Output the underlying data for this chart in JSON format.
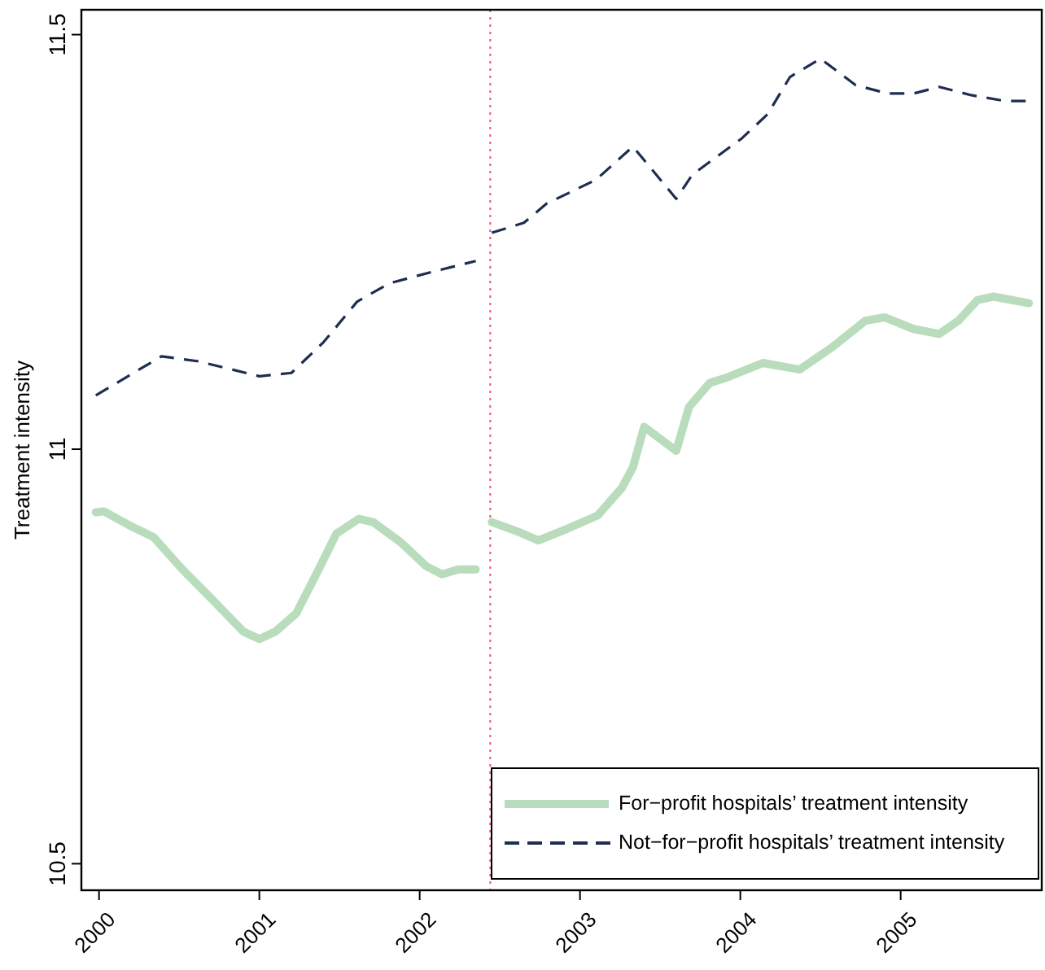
{
  "chart_data": {
    "type": "line",
    "ylabel": "Treatment intensity",
    "xlim": [
      1999.89,
      2005.88
    ],
    "ylim": [
      10.468,
      11.53
    ],
    "xticks": [
      2000,
      2001,
      2002,
      2003,
      2004,
      2005
    ],
    "yticks": [
      10.5,
      11,
      11.5
    ],
    "grid": false,
    "legend": "bottom right",
    "marker": "none",
    "ref_lines": [
      {
        "axis": "x",
        "value": 2002.44,
        "color": "#e8507a",
        "line_style": "dotted"
      }
    ],
    "series": [
      {
        "name": "For−profit hospitals’ treatment intensity",
        "color": "#b9dcbd",
        "line_style": "solid",
        "x": [
          1999.98,
          2000.03,
          2000.19,
          2000.34,
          2000.52,
          2000.72,
          2000.9,
          2001.0,
          2001.1,
          2001.23,
          2001.37,
          2001.48,
          2001.62,
          2001.71,
          2001.88,
          2002.04,
          2002.14,
          2002.24,
          2002.35,
          2002.44,
          2002.45,
          2002.62,
          2002.74,
          2002.92,
          2003.11,
          2003.26,
          2003.33,
          2003.4,
          2003.6,
          2003.68,
          2003.81,
          2003.91,
          2004.14,
          2004.37,
          2004.58,
          2004.78,
          2004.9,
          2005.08,
          2005.24,
          2005.36,
          2005.48,
          2005.58,
          2005.8
        ],
        "values": [
          10.924,
          10.925,
          10.908,
          10.894,
          10.855,
          10.816,
          10.78,
          10.771,
          10.78,
          10.802,
          10.855,
          10.898,
          10.916,
          10.912,
          10.888,
          10.859,
          10.849,
          10.855,
          10.855,
          null,
          10.912,
          10.9,
          10.89,
          10.904,
          10.92,
          10.953,
          10.978,
          11.027,
          10.998,
          11.051,
          11.08,
          11.086,
          11.104,
          11.096,
          11.124,
          11.155,
          11.159,
          11.145,
          11.139,
          11.155,
          11.18,
          11.184,
          11.176
        ]
      },
      {
        "name": "Not−for−profit hospitals’ treatment intensity",
        "color": "#1f2d52",
        "line_style": "dashed",
        "x": [
          1999.98,
          2000.39,
          2000.62,
          2001.0,
          2001.2,
          2001.4,
          2001.61,
          2001.81,
          2002.08,
          2002.35,
          2002.44,
          2002.45,
          2002.65,
          2002.79,
          2003.1,
          2003.33,
          2003.6,
          2003.7,
          2004.01,
          2004.17,
          2004.31,
          2004.5,
          2004.72,
          2004.92,
          2005.08,
          2005.24,
          2005.44,
          2005.65,
          2005.78
        ],
        "values": [
          11.065,
          11.112,
          11.106,
          11.088,
          11.092,
          11.129,
          11.178,
          11.2,
          11.214,
          11.227,
          null,
          11.261,
          11.273,
          11.296,
          11.325,
          11.365,
          11.302,
          11.331,
          11.375,
          11.404,
          11.449,
          11.471,
          11.439,
          11.429,
          11.429,
          11.437,
          11.427,
          11.42,
          11.42
        ]
      }
    ]
  }
}
